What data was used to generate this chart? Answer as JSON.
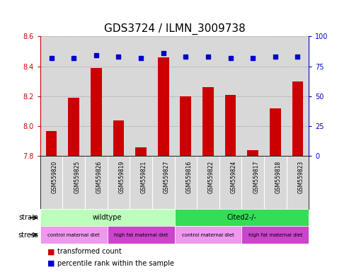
{
  "title": "GDS3724 / ILMN_3009738",
  "samples": [
    "GSM559820",
    "GSM559825",
    "GSM559826",
    "GSM559819",
    "GSM559821",
    "GSM559827",
    "GSM559816",
    "GSM559822",
    "GSM559824",
    "GSM559817",
    "GSM559818",
    "GSM559823"
  ],
  "transformed_counts": [
    7.97,
    8.19,
    8.39,
    8.04,
    7.86,
    8.46,
    8.2,
    8.26,
    8.21,
    7.84,
    8.12,
    8.3
  ],
  "percentile_ranks": [
    82,
    82,
    84,
    83,
    82,
    86,
    83,
    83,
    82,
    82,
    83,
    83
  ],
  "ylim_left": [
    7.8,
    8.6
  ],
  "ylim_right": [
    0,
    100
  ],
  "yticks_left": [
    7.8,
    8.0,
    8.2,
    8.4,
    8.6
  ],
  "yticks_right": [
    0,
    25,
    50,
    75,
    100
  ],
  "bar_color": "#cc0000",
  "dot_color": "#0000cc",
  "strain_groups": [
    {
      "label": "wildtype",
      "start": 0,
      "end": 6,
      "color": "#bbffbb"
    },
    {
      "label": "Cited2-/-",
      "start": 6,
      "end": 12,
      "color": "#33dd55"
    }
  ],
  "stress_groups": [
    {
      "label": "control maternal diet",
      "start": 0,
      "end": 3,
      "color": "#ee99ee"
    },
    {
      "label": "high fat maternal diet",
      "start": 3,
      "end": 6,
      "color": "#cc44cc"
    },
    {
      "label": "control maternal diet",
      "start": 6,
      "end": 9,
      "color": "#ee99ee"
    },
    {
      "label": "high fat maternal diet",
      "start": 9,
      "end": 12,
      "color": "#cc44cc"
    }
  ],
  "legend_bar_label": "transformed count",
  "legend_dot_label": "percentile rank within the sample",
  "bar_color_label": "#cc0000",
  "dot_color_label": "#0000cc",
  "dotted_grid_color": "#888888",
  "background_color": "#ffffff",
  "plot_bg_color": "#d8d8d8",
  "tick_label_fontsize": 7,
  "title_fontsize": 11,
  "sample_label_fontsize": 5.5,
  "annotation_fontsize": 7
}
